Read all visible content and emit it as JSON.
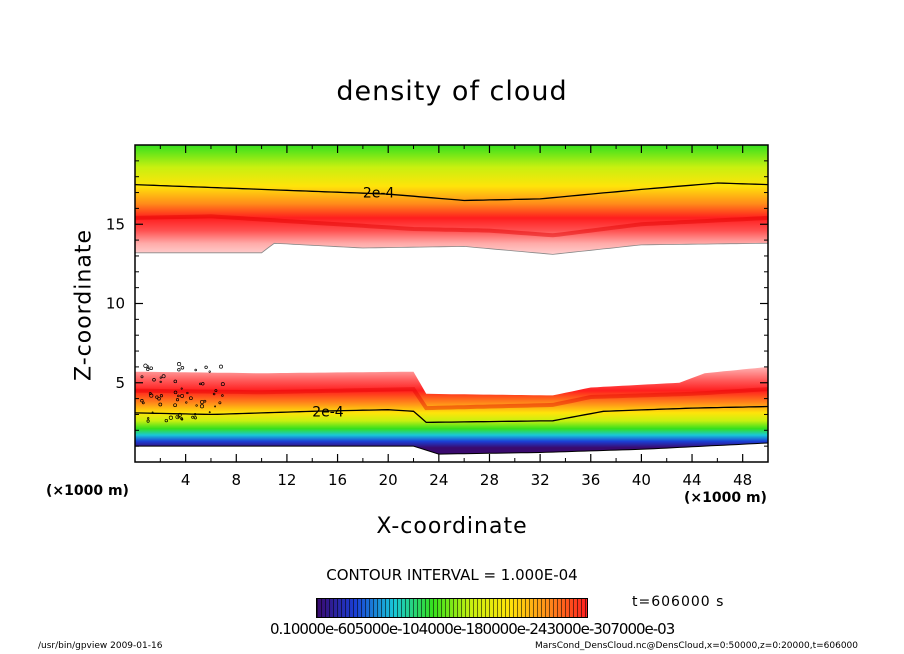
{
  "chart_data": {
    "type": "heatmap",
    "title": "density of cloud",
    "xlabel": "X-coordinate",
    "ylabel": "Z-coordinate",
    "x_unit_left": "(×1000 m)",
    "x_unit_right": "(×1000 m)",
    "xlim": [
      0,
      50
    ],
    "ylim": [
      0,
      20
    ],
    "x_ticks": [
      4,
      8,
      12,
      16,
      20,
      24,
      28,
      32,
      36,
      40,
      44,
      48
    ],
    "y_ticks": [
      5,
      10,
      15
    ],
    "contour_labels": [
      {
        "text": "2e-4",
        "x": 18,
        "z": 17.0
      },
      {
        "text": "2e-4",
        "x": 14,
        "z": 3.2
      }
    ],
    "contour_interval_text": "CONTOUR INTERVAL = 1.000E-04",
    "colorbar_labels_text": "0.10000e-605000e-104000e-180000e-243000e-307000e-03",
    "time_text": "t=606000 s",
    "colormap": [
      "#3a0a6e",
      "#1a3fd6",
      "#19c8d8",
      "#35e01e",
      "#c8f010",
      "#ffe40a",
      "#ff8c1a",
      "#ff1e1e",
      "#ffffff"
    ],
    "upper_layer": {
      "contour_2e4_z": [
        [
          0,
          17.5
        ],
        [
          10,
          17.2
        ],
        [
          20,
          16.9
        ],
        [
          26,
          16.5
        ],
        [
          32,
          16.6
        ],
        [
          40,
          17.2
        ],
        [
          46,
          17.6
        ],
        [
          50,
          17.5
        ]
      ],
      "red_core_z": [
        [
          0,
          15.4
        ],
        [
          6,
          15.5
        ],
        [
          14,
          15.1
        ],
        [
          22,
          14.7
        ],
        [
          28,
          14.6
        ],
        [
          33,
          14.3
        ],
        [
          40,
          15.0
        ],
        [
          50,
          15.4
        ]
      ],
      "lower_edge_z": [
        [
          0,
          13.2
        ],
        [
          10,
          13.2
        ],
        [
          11,
          13.8
        ],
        [
          18,
          13.5
        ],
        [
          26,
          13.6
        ],
        [
          33,
          13.1
        ],
        [
          40,
          13.7
        ],
        [
          50,
          13.8
        ]
      ]
    },
    "lower_layer": {
      "upper_edge_z": [
        [
          0,
          5.7
        ],
        [
          10,
          5.6
        ],
        [
          22,
          5.7
        ],
        [
          23,
          4.3
        ],
        [
          33,
          4.2
        ],
        [
          36,
          4.7
        ],
        [
          43,
          5.0
        ],
        [
          45,
          5.6
        ],
        [
          50,
          6.0
        ]
      ],
      "red_core_z": [
        [
          0,
          4.5
        ],
        [
          10,
          4.4
        ],
        [
          22,
          4.6
        ],
        [
          23,
          3.4
        ],
        [
          33,
          3.6
        ],
        [
          36,
          4.1
        ],
        [
          44,
          4.3
        ],
        [
          50,
          4.6
        ]
      ],
      "contour_2e4_z": [
        [
          0,
          3.1
        ],
        [
          6,
          3.0
        ],
        [
          14,
          3.2
        ],
        [
          20,
          3.3
        ],
        [
          22,
          3.2
        ],
        [
          23,
          2.5
        ],
        [
          33,
          2.6
        ],
        [
          37,
          3.2
        ],
        [
          44,
          3.4
        ],
        [
          50,
          3.5
        ]
      ],
      "bottom_z": [
        [
          0,
          1.0
        ],
        [
          10,
          1.0
        ],
        [
          22,
          1.0
        ],
        [
          24,
          0.5
        ],
        [
          32,
          0.6
        ],
        [
          40,
          0.8
        ],
        [
          50,
          1.2
        ]
      ]
    }
  },
  "footer": {
    "left": "/usr/bin/gpview  2009-01-16",
    "right": "MarsCond_DensCloud.nc@DensCloud,x=0:50000,z=0:20000,t=606000"
  }
}
